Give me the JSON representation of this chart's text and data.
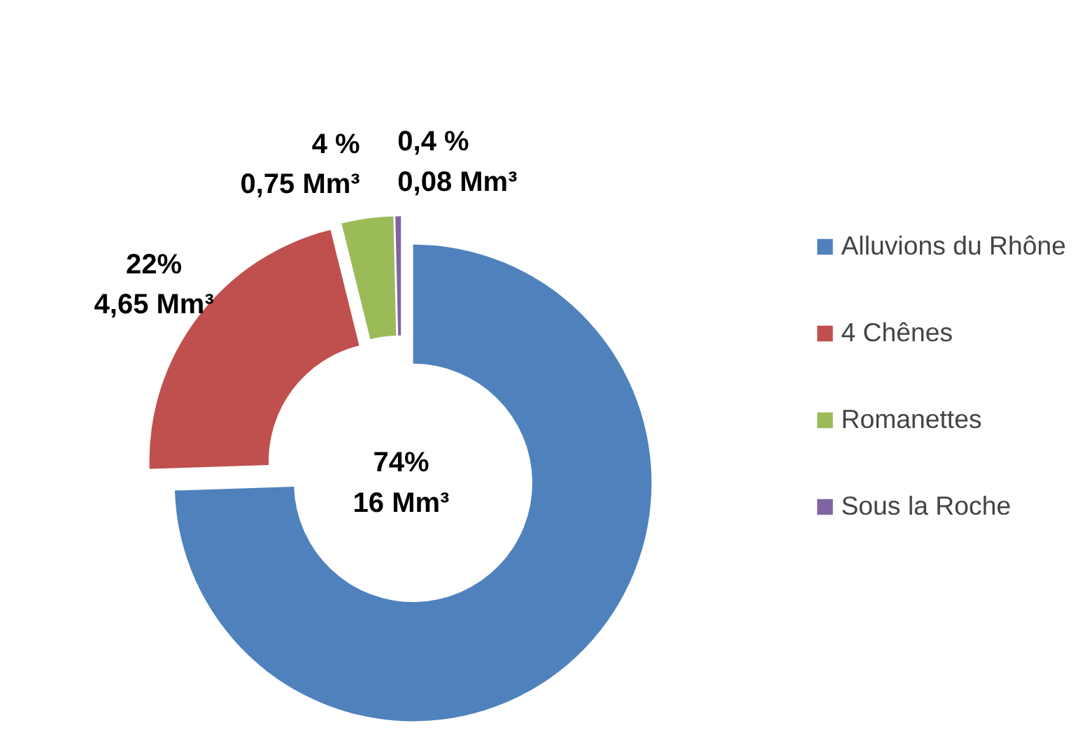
{
  "chart_data": {
    "type": "donut",
    "categories": [
      "Alluvions du Rhône",
      "4 Chênes",
      "Romanettes",
      "Sous la Roche"
    ],
    "values": [
      16,
      4.65,
      0.75,
      0.08
    ],
    "colors": [
      "#4f81bd",
      "#c0504d",
      "#9bbb59",
      "#8064a2"
    ],
    "value_labels": [
      "74%\n16 Mm³",
      "22%\n4,65 Mm³",
      "4 %\n0,75 Mm³",
      "0,4 %\n0,08 Mm³"
    ],
    "legend": "right"
  }
}
